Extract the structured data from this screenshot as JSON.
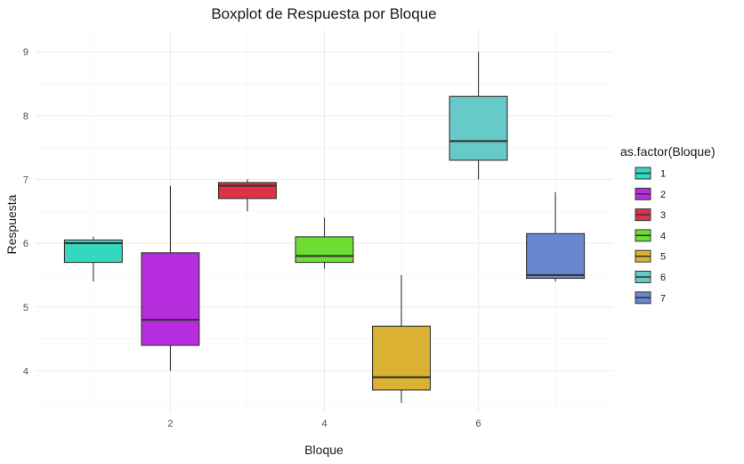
{
  "chart_data": {
    "type": "boxplot",
    "title": "Boxplot de Respuesta por Bloque",
    "xlabel": "Bloque",
    "ylabel": "Respuesta",
    "xlim": [
      0.25,
      7.75
    ],
    "ylim": [
      3.35,
      9.35
    ],
    "x_ticks": [
      2,
      4,
      6
    ],
    "y_ticks": [
      4,
      5,
      6,
      7,
      8,
      9
    ],
    "grid": true,
    "legend": {
      "title": "as.factor(Bloque)",
      "position": "right"
    },
    "series": [
      {
        "name": "1",
        "x": 1,
        "min": 5.4,
        "q1": 5.7,
        "median": 6.0,
        "q3": 6.05,
        "max": 6.1,
        "color": "#33D9BE"
      },
      {
        "name": "2",
        "x": 2,
        "min": 4.0,
        "q1": 4.4,
        "median": 4.8,
        "q3": 5.85,
        "max": 6.9,
        "color": "#B62DDE"
      },
      {
        "name": "3",
        "x": 3,
        "min": 6.5,
        "q1": 6.7,
        "median": 6.9,
        "q3": 6.95,
        "max": 7.0,
        "color": "#DD3348"
      },
      {
        "name": "4",
        "x": 4,
        "min": 5.6,
        "q1": 5.7,
        "median": 5.8,
        "q3": 6.1,
        "max": 6.4,
        "color": "#6EDD33"
      },
      {
        "name": "5",
        "x": 5,
        "min": 3.5,
        "q1": 3.7,
        "median": 3.9,
        "q3": 4.7,
        "max": 5.5,
        "color": "#DAB133"
      },
      {
        "name": "6",
        "x": 6,
        "min": 7.0,
        "q1": 7.3,
        "median": 7.6,
        "q3": 8.3,
        "max": 9.0,
        "color": "#66CAC8"
      },
      {
        "name": "7",
        "x": 7,
        "min": 5.4,
        "q1": 5.45,
        "median": 5.5,
        "q3": 6.15,
        "max": 6.8,
        "color": "#6787CE"
      }
    ]
  }
}
